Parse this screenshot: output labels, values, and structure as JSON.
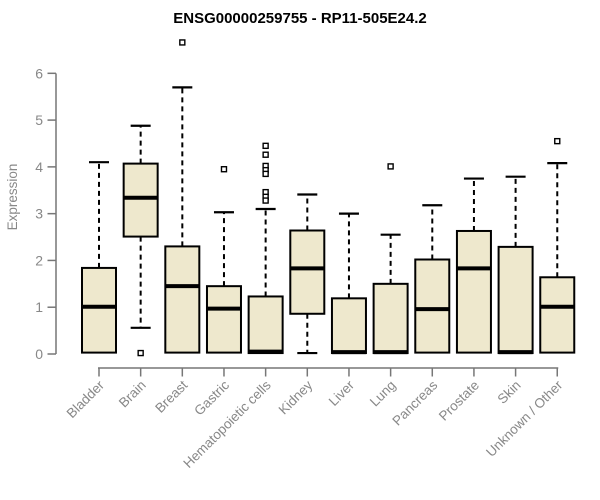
{
  "chart_data": {
    "type": "boxplot",
    "title": "ENSG00000259755 - RP11-505E24.2",
    "ylabel": "Expression",
    "ylim": [
      0,
      6
    ],
    "yticks": [
      0,
      1,
      2,
      3,
      4,
      5,
      6
    ],
    "grid": false,
    "legend": "none",
    "categories": [
      "Bladder",
      "Brain",
      "Breast",
      "Gastric",
      "Hematopoietic cells",
      "Kidney",
      "Liver",
      "Lung",
      "Pancreas",
      "Prostate",
      "Skin",
      "Unknown / Other"
    ],
    "series": [
      {
        "name": "Bladder",
        "q1": 0.03,
        "median": 1.01,
        "q3": 1.84,
        "whisker_low": 0.03,
        "whisker_high": 4.1,
        "outliers": []
      },
      {
        "name": "Brain",
        "q1": 2.51,
        "median": 3.34,
        "q3": 4.07,
        "whisker_low": 0.56,
        "whisker_high": 4.88,
        "outliers": [
          0.02
        ]
      },
      {
        "name": "Breast",
        "q1": 0.03,
        "median": 1.45,
        "q3": 2.3,
        "whisker_low": 0.03,
        "whisker_high": 5.7,
        "outliers": [
          6.66
        ]
      },
      {
        "name": "Gastric",
        "q1": 0.03,
        "median": 0.97,
        "q3": 1.45,
        "whisker_low": 0.03,
        "whisker_high": 3.03,
        "outliers": [
          3.95
        ]
      },
      {
        "name": "Hematopoietic cells",
        "q1": 0.02,
        "median": 0.05,
        "q3": 1.23,
        "whisker_low": 0.02,
        "whisker_high": 3.1,
        "outliers": [
          4.45,
          4.26,
          4.02,
          3.93,
          3.85,
          3.46,
          3.36,
          3.28
        ]
      },
      {
        "name": "Kidney",
        "q1": 0.86,
        "median": 1.83,
        "q3": 2.64,
        "whisker_low": 0.02,
        "whisker_high": 3.41,
        "outliers": []
      },
      {
        "name": "Liver",
        "q1": 0.02,
        "median": 0.04,
        "q3": 1.19,
        "whisker_low": 0.02,
        "whisker_high": 3.0,
        "outliers": []
      },
      {
        "name": "Lung",
        "q1": 0.02,
        "median": 0.04,
        "q3": 1.5,
        "whisker_low": 0.02,
        "whisker_high": 2.55,
        "outliers": [
          4.01
        ]
      },
      {
        "name": "Pancreas",
        "q1": 0.03,
        "median": 0.96,
        "q3": 2.02,
        "whisker_low": 0.03,
        "whisker_high": 3.18,
        "outliers": []
      },
      {
        "name": "Prostate",
        "q1": 0.03,
        "median": 1.83,
        "q3": 2.63,
        "whisker_low": 0.03,
        "whisker_high": 3.75,
        "outliers": []
      },
      {
        "name": "Skin",
        "q1": 0.02,
        "median": 0.04,
        "q3": 2.29,
        "whisker_low": 0.02,
        "whisker_high": 3.79,
        "outliers": []
      },
      {
        "name": "Unknown / Other",
        "q1": 0.03,
        "median": 1.01,
        "q3": 1.64,
        "whisker_low": 0.03,
        "whisker_high": 4.08,
        "outliers": [
          4.55
        ]
      }
    ]
  },
  "colors": {
    "background": "#FFFFFF",
    "box_fill": "#EEE8CD",
    "box_stroke": "#000000",
    "median": "#000000",
    "whisker": "#000000",
    "outlier_stroke": "#000000",
    "outlier_fill": "#FFFFFF",
    "axis": "#777777",
    "tick_label": "#888888",
    "title": "#000000"
  }
}
